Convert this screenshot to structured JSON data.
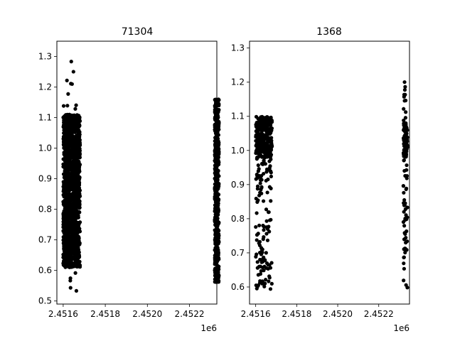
{
  "chart_data": [
    {
      "type": "scatter",
      "title": "71304",
      "x_offset_label": "1e6",
      "xlim": [
        2.45157,
        2.45233
      ],
      "ylim": [
        0.49,
        1.35
      ],
      "x_ticks": [
        2.4516,
        2.4518,
        2.452,
        2.4522
      ],
      "x_tick_labels": [
        "2.4516",
        "2.4518",
        "2.4520",
        "2.4522"
      ],
      "y_ticks": [
        0.5,
        0.6,
        0.7,
        0.8,
        0.9,
        1.0,
        1.1,
        1.2,
        1.3
      ],
      "y_tick_labels": [
        "0.5",
        "0.6",
        "0.7",
        "0.8",
        "0.9",
        "1.0",
        "1.1",
        "1.2",
        "1.3"
      ],
      "point_color": "#000000",
      "clusters": [
        {
          "x_range": [
            2.4516,
            2.45168
          ],
          "y_range": [
            0.61,
            1.11
          ],
          "sparse_y_range": [
            0.53,
            1.31
          ],
          "count": 1400
        },
        {
          "x_range": [
            2.45232,
            2.45234
          ],
          "y_range": [
            0.56,
            1.16
          ],
          "sparse_y_range": [
            0.54,
            1.21
          ],
          "count": 500
        }
      ]
    },
    {
      "type": "scatter",
      "title": "1368",
      "x_offset_label": "1e6",
      "xlim": [
        2.45157,
        2.45235
      ],
      "ylim": [
        0.55,
        1.32
      ],
      "x_ticks": [
        2.4516,
        2.4518,
        2.452,
        2.4522
      ],
      "x_tick_labels": [
        "2.4516",
        "2.4518",
        "2.4520",
        "2.4522"
      ],
      "y_ticks": [
        0.6,
        0.7,
        0.8,
        0.9,
        1.0,
        1.1,
        1.2,
        1.3
      ],
      "y_tick_labels": [
        "0.6",
        "0.7",
        "0.8",
        "0.9",
        "1.0",
        "1.1",
        "1.2",
        "1.3"
      ],
      "point_color": "#000000",
      "clusters": [
        {
          "x_range": [
            2.4516,
            2.45168
          ],
          "y_range": [
            0.59,
            1.1
          ],
          "dense_y_range": [
            0.98,
            1.1
          ],
          "count": 420
        },
        {
          "x_range": [
            2.45232,
            2.45234
          ],
          "y_range": [
            0.58,
            1.21
          ],
          "dense_y_range": [
            0.98,
            1.08
          ],
          "count": 150
        }
      ]
    }
  ]
}
